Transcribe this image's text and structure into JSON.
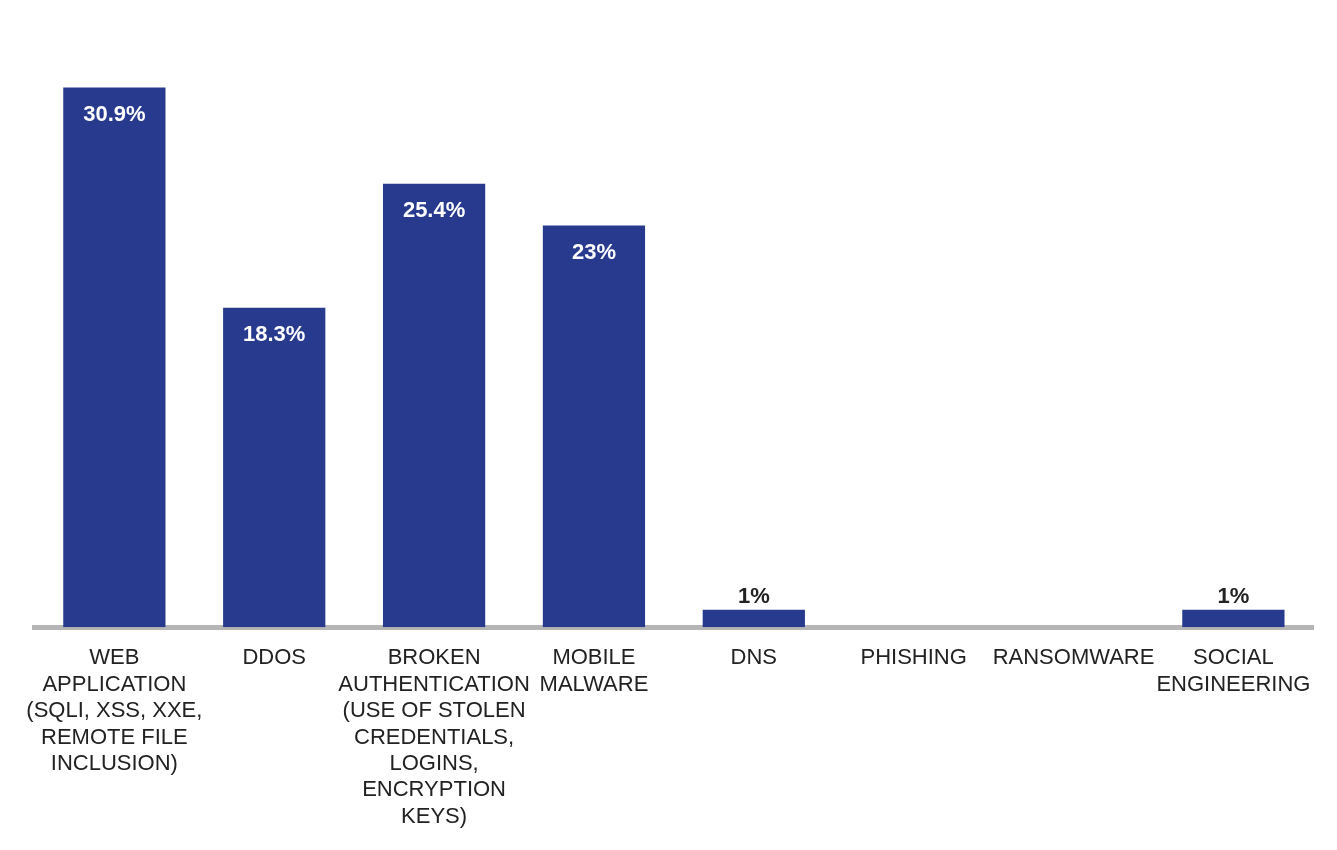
{
  "chart_data": {
    "type": "bar",
    "categories": [
      "WEB APPLICATION (SQLI, XSS, XXE, REMOTE FILE INCLUSION)",
      "DDOS",
      "BROKEN AUTHENTICATION (USE OF STOLEN CREDENTIALS, LOGINS, ENCRYPTION KEYS)",
      "MOBILE MALWARE",
      "DNS",
      "PHISHING",
      "RANSOMWARE",
      "SOCIAL ENGINEERING"
    ],
    "values": [
      30.9,
      18.3,
      25.4,
      23,
      1,
      null,
      null,
      1
    ],
    "value_labels": [
      "30.9%",
      "18.3%",
      "25.4%",
      "23%",
      "1%",
      null,
      null,
      "1%"
    ],
    "color": "#283a8e",
    "grid": false,
    "legend": false
  }
}
